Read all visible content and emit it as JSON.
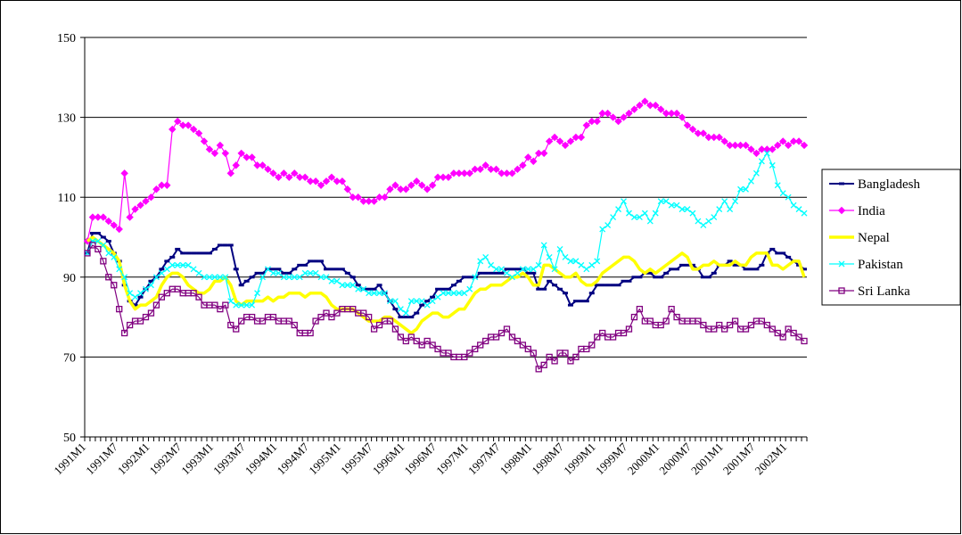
{
  "chart_data": {
    "type": "line",
    "categories": [
      "1991M1",
      null,
      null,
      null,
      null,
      null,
      "1991M7",
      null,
      null,
      null,
      null,
      null,
      "1992M1",
      null,
      null,
      null,
      null,
      null,
      "1992M7",
      null,
      null,
      null,
      null,
      null,
      "1993M1",
      null,
      null,
      null,
      null,
      null,
      "1993M7",
      null,
      null,
      null,
      null,
      null,
      "1994M1",
      null,
      null,
      null,
      null,
      null,
      "1994M7",
      null,
      null,
      null,
      null,
      null,
      "1995M1",
      null,
      null,
      null,
      null,
      null,
      "1995M7",
      null,
      null,
      null,
      null,
      null,
      "1996M1",
      null,
      null,
      null,
      null,
      null,
      "1996M7",
      null,
      null,
      null,
      null,
      null,
      "1997M1",
      null,
      null,
      null,
      null,
      null,
      "1997M7",
      null,
      null,
      null,
      null,
      null,
      "1998M1",
      null,
      null,
      null,
      null,
      null,
      "1998M7",
      null,
      null,
      null,
      null,
      null,
      "1999M1",
      null,
      null,
      null,
      null,
      null,
      "1999M7",
      null,
      null,
      null,
      null,
      null,
      "2000M1",
      null,
      null,
      null,
      null,
      null,
      "2000M7",
      null,
      null,
      null,
      null,
      null,
      "2001M1",
      null,
      null,
      null,
      null,
      null,
      "2001M7",
      null,
      null,
      null,
      null,
      null,
      "2002M1",
      null,
      null,
      null
    ],
    "series": [
      {
        "name": "Bangladesh",
        "color": "#000080",
        "marker": "dash",
        "values": [
          96,
          101,
          101,
          100,
          99,
          96,
          94,
          88,
          84,
          83,
          85,
          87,
          89,
          90,
          92,
          94,
          95,
          97,
          96,
          96,
          96,
          96,
          96,
          96,
          97,
          98,
          98,
          98,
          92,
          88,
          89,
          90,
          91,
          91,
          92,
          92,
          92,
          91,
          91,
          92,
          93,
          93,
          94,
          94,
          94,
          92,
          92,
          92,
          92,
          91,
          90,
          88,
          87,
          87,
          87,
          88,
          86,
          84,
          82,
          80,
          80,
          80,
          81,
          83,
          84,
          85,
          87,
          87,
          87,
          88,
          89,
          90,
          90,
          90,
          91,
          91,
          91,
          91,
          91,
          92,
          92,
          92,
          92,
          91,
          91,
          87,
          87,
          89,
          88,
          87,
          86,
          83,
          84,
          84,
          84,
          86,
          88,
          88,
          88,
          88,
          88,
          89,
          89,
          90,
          90,
          91,
          91,
          90,
          90,
          91,
          92,
          92,
          93,
          93,
          93,
          92,
          90,
          90,
          91,
          93,
          93,
          94,
          93,
          93,
          92,
          92,
          92,
          93,
          96,
          97,
          96,
          96,
          95,
          94,
          93,
          92
        ]
      },
      {
        "name": "India",
        "color": "#ff00ff",
        "marker": "diamond",
        "values": [
          99,
          105,
          105,
          105,
          104,
          103,
          102,
          116,
          105,
          107,
          108,
          109,
          110,
          112,
          113,
          113,
          127,
          129,
          128,
          128,
          127,
          126,
          124,
          122,
          121,
          123,
          121,
          116,
          118,
          121,
          120,
          120,
          118,
          118,
          117,
          116,
          115,
          116,
          115,
          116,
          115,
          115,
          114,
          114,
          113,
          114,
          115,
          114,
          114,
          112,
          110,
          110,
          109,
          109,
          109,
          110,
          110,
          112,
          113,
          112,
          112,
          113,
          114,
          113,
          112,
          113,
          115,
          115,
          115,
          116,
          116,
          116,
          116,
          117,
          117,
          118,
          117,
          117,
          116,
          116,
          116,
          117,
          118,
          120,
          119,
          121,
          121,
          124,
          125,
          124,
          123,
          124,
          125,
          125,
          128,
          129,
          129,
          131,
          131,
          130,
          129,
          130,
          131,
          132,
          133,
          134,
          133,
          133,
          132,
          131,
          131,
          131,
          130,
          128,
          127,
          126,
          126,
          125,
          125,
          125,
          124,
          123,
          123,
          123,
          123,
          122,
          121,
          122,
          122,
          122,
          123,
          124,
          123,
          124,
          124,
          123
        ]
      },
      {
        "name": "Nepal",
        "color": "#ffff00",
        "marker": "none",
        "values": [
          99,
          100,
          99,
          98,
          97,
          96,
          94,
          88,
          84,
          82,
          83,
          83,
          84,
          85,
          88,
          90,
          91,
          91,
          90,
          88,
          87,
          86,
          86,
          87,
          89,
          89,
          90,
          88,
          84,
          83,
          84,
          84,
          84,
          84,
          85,
          84,
          85,
          85,
          86,
          86,
          86,
          85,
          86,
          86,
          86,
          85,
          83,
          82,
          82,
          82,
          82,
          81,
          80,
          79,
          79,
          79,
          80,
          80,
          79,
          78,
          77,
          76,
          77,
          79,
          80,
          81,
          81,
          80,
          80,
          81,
          82,
          82,
          84,
          86,
          87,
          87,
          88,
          88,
          88,
          89,
          90,
          90,
          91,
          90,
          88,
          88,
          93,
          93,
          92,
          91,
          90,
          90,
          91,
          89,
          88,
          88,
          89,
          91,
          92,
          93,
          94,
          95,
          95,
          94,
          92,
          91,
          92,
          91,
          92,
          93,
          94,
          95,
          96,
          95,
          92,
          92,
          93,
          93,
          94,
          93,
          93,
          93,
          94,
          93,
          93,
          95,
          96,
          96,
          96,
          93,
          93,
          92,
          93,
          94,
          94,
          90
        ]
      },
      {
        "name": "Pakistan",
        "color": "#00ffff",
        "marker": "x",
        "values": [
          96,
          99,
          99,
          98,
          96,
          95,
          92,
          90,
          86,
          85,
          86,
          87,
          88,
          90,
          91,
          92,
          93,
          93,
          93,
          93,
          92,
          91,
          90,
          90,
          90,
          90,
          90,
          84,
          83,
          83,
          83,
          83,
          86,
          90,
          92,
          91,
          91,
          90,
          90,
          90,
          90,
          91,
          91,
          91,
          90,
          90,
          89,
          89,
          88,
          88,
          88,
          87,
          87,
          86,
          86,
          86,
          86,
          84,
          84,
          82,
          81,
          84,
          84,
          84,
          83,
          84,
          85,
          86,
          86,
          86,
          86,
          86,
          87,
          90,
          94,
          95,
          93,
          92,
          92,
          91,
          90,
          91,
          92,
          92,
          92,
          93,
          98,
          95,
          92,
          97,
          95,
          94,
          94,
          93,
          92,
          93,
          94,
          102,
          103,
          105,
          107,
          109,
          106,
          105,
          105,
          106,
          104,
          106,
          109,
          109,
          108,
          108,
          107,
          107,
          106,
          104,
          103,
          104,
          105,
          107,
          109,
          107,
          109,
          112,
          112,
          114,
          116,
          119,
          121,
          118,
          113,
          111,
          110,
          108,
          107,
          106
        ]
      },
      {
        "name": "Sri Lanka",
        "color": "#800080",
        "marker": "square",
        "values": [
          96,
          98,
          97,
          94,
          90,
          88,
          82,
          76,
          78,
          79,
          79,
          80,
          81,
          83,
          85,
          86,
          87,
          87,
          86,
          86,
          86,
          85,
          83,
          83,
          83,
          82,
          83,
          78,
          77,
          79,
          80,
          80,
          79,
          79,
          80,
          80,
          79,
          79,
          79,
          78,
          76,
          76,
          76,
          79,
          80,
          81,
          80,
          81,
          82,
          82,
          82,
          81,
          81,
          80,
          77,
          78,
          79,
          79,
          77,
          75,
          74,
          75,
          74,
          73,
          74,
          73,
          72,
          71,
          71,
          70,
          70,
          70,
          71,
          72,
          73,
          74,
          75,
          75,
          76,
          77,
          75,
          74,
          73,
          72,
          71,
          67,
          68,
          70,
          69,
          71,
          71,
          69,
          70,
          72,
          72,
          73,
          75,
          76,
          75,
          75,
          76,
          76,
          77,
          80,
          82,
          79,
          79,
          78,
          78,
          79,
          82,
          80,
          79,
          79,
          79,
          79,
          78,
          77,
          77,
          78,
          77,
          78,
          79,
          77,
          77,
          78,
          79,
          79,
          78,
          77,
          76,
          75,
          77,
          76,
          75,
          74
        ]
      }
    ],
    "ylim": [
      50,
      150
    ],
    "yticks": [
      50,
      70,
      90,
      110,
      130,
      150
    ],
    "grid": true,
    "legend": "right"
  }
}
